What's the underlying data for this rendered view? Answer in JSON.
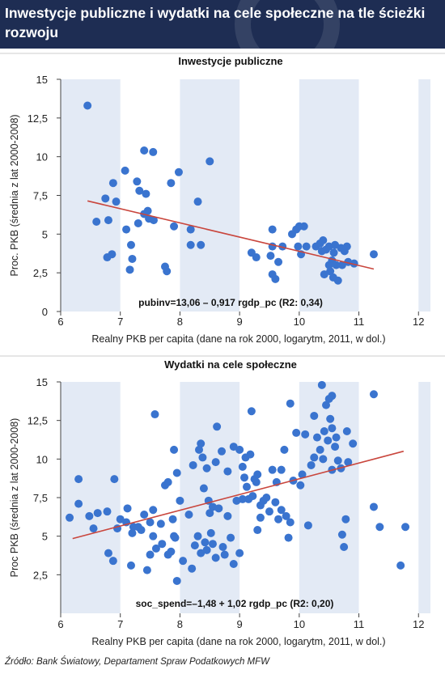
{
  "header": {
    "title": "Inwestycje publiczne i wydatki na cele społeczne na tle ścieżki rozwoju",
    "brand_color": "#1e2d53"
  },
  "source": "Źródło:  Bank Światowy, Departament Spraw Podatkowych MFW",
  "colors": {
    "point": "#3a74cf",
    "trend": "#c9463d",
    "band": "#e3eaf5"
  },
  "chart_data": [
    {
      "type": "scatter",
      "title": "Inwestycje publiczne",
      "xlabel": "Realny PKB per capita (dane na rok 2000, logarytm, 2011, w dol.)",
      "ylabel": "Proc. PKB (średnia z lat 2000-2008)",
      "xlim": [
        6,
        12.2
      ],
      "ylim": [
        0,
        15
      ],
      "xticks": [
        "6",
        "7",
        "8",
        "9",
        "10",
        "11",
        "12"
      ],
      "yticks": [
        "0",
        "2,5",
        "5",
        "7,5",
        "10",
        "12,5",
        "15"
      ],
      "grid": false,
      "annotation": "pubinv=13,06 – 0,917 rgdp_pc (R2: 0,34)",
      "trend": {
        "intercept": 13.06,
        "slope": -0.917,
        "x_range": [
          6.45,
          11.25
        ]
      },
      "points": [
        [
          6.45,
          13.3
        ],
        [
          6.6,
          5.8
        ],
        [
          6.75,
          7.3
        ],
        [
          6.8,
          5.9
        ],
        [
          6.88,
          8.3
        ],
        [
          6.93,
          7.1
        ],
        [
          6.78,
          3.5
        ],
        [
          6.86,
          3.7
        ],
        [
          7.08,
          9.1
        ],
        [
          7.1,
          5.3
        ],
        [
          7.18,
          4.3
        ],
        [
          7.2,
          3.4
        ],
        [
          7.16,
          2.7
        ],
        [
          7.28,
          8.4
        ],
        [
          7.32,
          7.8
        ],
        [
          7.3,
          5.7
        ],
        [
          7.4,
          10.4
        ],
        [
          7.43,
          7.6
        ],
        [
          7.46,
          6.5
        ],
        [
          7.48,
          6.0
        ],
        [
          7.55,
          10.3
        ],
        [
          7.56,
          5.9
        ],
        [
          7.4,
          6.3
        ],
        [
          7.75,
          2.9
        ],
        [
          7.78,
          2.6
        ],
        [
          7.85,
          8.3
        ],
        [
          7.9,
          5.5
        ],
        [
          7.98,
          9.0
        ],
        [
          8.18,
          5.3
        ],
        [
          8.18,
          4.3
        ],
        [
          8.3,
          7.1
        ],
        [
          8.35,
          4.3
        ],
        [
          8.5,
          9.7
        ],
        [
          9.2,
          3.8
        ],
        [
          9.28,
          3.5
        ],
        [
          9.55,
          4.2
        ],
        [
          9.52,
          3.6
        ],
        [
          9.55,
          5.3
        ],
        [
          9.55,
          2.4
        ],
        [
          9.6,
          2.1
        ],
        [
          9.65,
          3.2
        ],
        [
          9.72,
          4.2
        ],
        [
          9.88,
          5.0
        ],
        [
          9.95,
          5.3
        ],
        [
          9.98,
          4.2
        ],
        [
          10.0,
          5.5
        ],
        [
          10.03,
          3.7
        ],
        [
          10.08,
          5.5
        ],
        [
          10.12,
          4.2
        ],
        [
          10.28,
          4.2
        ],
        [
          10.35,
          4.4
        ],
        [
          10.38,
          3.9
        ],
        [
          10.4,
          4.6
        ],
        [
          10.42,
          2.4
        ],
        [
          10.45,
          4.0
        ],
        [
          10.5,
          3.0
        ],
        [
          10.5,
          4.2
        ],
        [
          10.52,
          2.6
        ],
        [
          10.55,
          3.3
        ],
        [
          10.57,
          2.2
        ],
        [
          10.58,
          3.8
        ],
        [
          10.6,
          4.3
        ],
        [
          10.62,
          3.0
        ],
        [
          10.65,
          2.0
        ],
        [
          10.7,
          4.1
        ],
        [
          10.72,
          3.0
        ],
        [
          10.76,
          3.9
        ],
        [
          10.8,
          4.2
        ],
        [
          10.82,
          3.2
        ],
        [
          10.92,
          3.1
        ],
        [
          11.25,
          3.7
        ]
      ]
    },
    {
      "type": "scatter",
      "title": "Wydatki na cele społeczne",
      "xlabel": "Realny PKB per capita (dane na rok 2000, logarytm, 2011, w dol.)",
      "ylabel": "Proc PKB (średnia z lat 2000-2008)",
      "xlim": [
        6,
        12.2
      ],
      "ylim": [
        0,
        15
      ],
      "xticks": [
        "6",
        "7",
        "8",
        "9",
        "10",
        "11",
        "12"
      ],
      "yticks": [
        "2,5",
        "5",
        "7,5",
        "10",
        "12,5",
        "15"
      ],
      "grid": false,
      "annotation": "soc_spend=–1,48 + 1,02 rgdp_pc (R2: 0,20)",
      "trend": {
        "intercept": -1.48,
        "slope": 1.02,
        "x_range": [
          6.2,
          11.75
        ]
      },
      "points": [
        [
          6.15,
          6.2
        ],
        [
          6.3,
          8.7
        ],
        [
          6.3,
          7.1
        ],
        [
          6.48,
          6.3
        ],
        [
          6.55,
          5.5
        ],
        [
          6.62,
          6.5
        ],
        [
          6.78,
          6.6
        ],
        [
          6.8,
          3.9
        ],
        [
          6.88,
          3.4
        ],
        [
          6.95,
          5.5
        ],
        [
          6.9,
          8.7
        ],
        [
          7.0,
          6.1
        ],
        [
          7.1,
          5.9
        ],
        [
          7.12,
          6.8
        ],
        [
          7.18,
          3.1
        ],
        [
          7.2,
          5.2
        ],
        [
          7.22,
          5.6
        ],
        [
          7.3,
          5.6
        ],
        [
          7.35,
          5.4
        ],
        [
          7.4,
          6.4
        ],
        [
          7.45,
          2.8
        ],
        [
          7.5,
          5.9
        ],
        [
          7.5,
          3.8
        ],
        [
          7.55,
          5.0
        ],
        [
          7.58,
          12.9
        ],
        [
          7.55,
          6.7
        ],
        [
          7.6,
          4.2
        ],
        [
          7.68,
          5.8
        ],
        [
          7.7,
          4.5
        ],
        [
          7.75,
          8.3
        ],
        [
          7.8,
          3.8
        ],
        [
          7.8,
          8.5
        ],
        [
          7.85,
          4.0
        ],
        [
          7.88,
          6.1
        ],
        [
          7.9,
          10.6
        ],
        [
          7.9,
          5.0
        ],
        [
          7.92,
          4.9
        ],
        [
          7.95,
          2.1
        ],
        [
          7.95,
          9.1
        ],
        [
          8.0,
          7.3
        ],
        [
          8.05,
          3.4
        ],
        [
          8.15,
          6.4
        ],
        [
          8.2,
          2.9
        ],
        [
          8.22,
          9.6
        ],
        [
          8.25,
          4.4
        ],
        [
          8.3,
          5.0
        ],
        [
          8.32,
          10.6
        ],
        [
          8.35,
          11.0
        ],
        [
          8.35,
          3.9
        ],
        [
          8.38,
          10.1
        ],
        [
          8.4,
          8.1
        ],
        [
          8.42,
          4.6
        ],
        [
          8.45,
          9.4
        ],
        [
          8.45,
          4.1
        ],
        [
          8.48,
          7.3
        ],
        [
          8.5,
          6.5
        ],
        [
          8.52,
          5.2
        ],
        [
          8.55,
          6.9
        ],
        [
          8.55,
          4.5
        ],
        [
          8.6,
          9.8
        ],
        [
          8.6,
          3.6
        ],
        [
          8.62,
          12.1
        ],
        [
          8.65,
          6.8
        ],
        [
          8.7,
          10.5
        ],
        [
          8.72,
          4.3
        ],
        [
          8.75,
          3.8
        ],
        [
          8.8,
          9.2
        ],
        [
          8.8,
          6.3
        ],
        [
          8.85,
          4.9
        ],
        [
          8.9,
          10.8
        ],
        [
          8.95,
          7.3
        ],
        [
          8.9,
          3.2
        ],
        [
          9.0,
          10.6
        ],
        [
          9.0,
          3.9
        ],
        [
          9.05,
          9.5
        ],
        [
          9.05,
          7.4
        ],
        [
          9.08,
          8.8
        ],
        [
          9.1,
          10.1
        ],
        [
          9.12,
          8.2
        ],
        [
          9.15,
          7.4
        ],
        [
          9.18,
          10.3
        ],
        [
          9.2,
          13.1
        ],
        [
          9.22,
          7.6
        ],
        [
          9.25,
          8.7
        ],
        [
          9.28,
          8.5
        ],
        [
          9.3,
          9.0
        ],
        [
          9.3,
          5.4
        ],
        [
          9.35,
          7.0
        ],
        [
          9.35,
          6.2
        ],
        [
          9.4,
          7.3
        ],
        [
          9.45,
          7.5
        ],
        [
          9.5,
          6.6
        ],
        [
          9.55,
          9.3
        ],
        [
          9.6,
          7.2
        ],
        [
          9.62,
          8.5
        ],
        [
          9.65,
          6.1
        ],
        [
          9.7,
          9.3
        ],
        [
          9.7,
          6.7
        ],
        [
          9.75,
          10.6
        ],
        [
          9.78,
          6.3
        ],
        [
          9.82,
          4.9
        ],
        [
          9.85,
          5.9
        ],
        [
          9.9,
          8.6
        ],
        [
          9.95,
          11.7
        ],
        [
          10.02,
          8.3
        ],
        [
          10.05,
          9.0
        ],
        [
          10.1,
          11.6
        ],
        [
          10.15,
          5.7
        ],
        [
          10.2,
          9.6
        ],
        [
          10.25,
          12.8
        ],
        [
          10.3,
          11.4
        ],
        [
          10.35,
          10.6
        ],
        [
          10.38,
          14.8
        ],
        [
          10.4,
          10.0
        ],
        [
          10.42,
          11.8
        ],
        [
          10.45,
          13.5
        ],
        [
          10.48,
          11.2
        ],
        [
          10.5,
          13.9
        ],
        [
          10.52,
          12.6
        ],
        [
          10.55,
          14.1
        ],
        [
          10.55,
          12.0
        ],
        [
          10.6,
          10.8
        ],
        [
          10.62,
          11.4
        ],
        [
          10.65,
          9.9
        ],
        [
          10.7,
          9.4
        ],
        [
          10.72,
          5.1
        ],
        [
          10.75,
          4.3
        ],
        [
          10.78,
          6.1
        ],
        [
          10.8,
          11.8
        ],
        [
          10.82,
          9.8
        ],
        [
          10.9,
          11.0
        ],
        [
          11.25,
          14.2
        ],
        [
          11.25,
          6.9
        ],
        [
          11.35,
          5.6
        ],
        [
          11.7,
          3.1
        ],
        [
          11.78,
          5.6
        ],
        [
          9.85,
          13.6
        ],
        [
          10.55,
          9.3
        ],
        [
          10.25,
          10.1
        ]
      ]
    }
  ]
}
